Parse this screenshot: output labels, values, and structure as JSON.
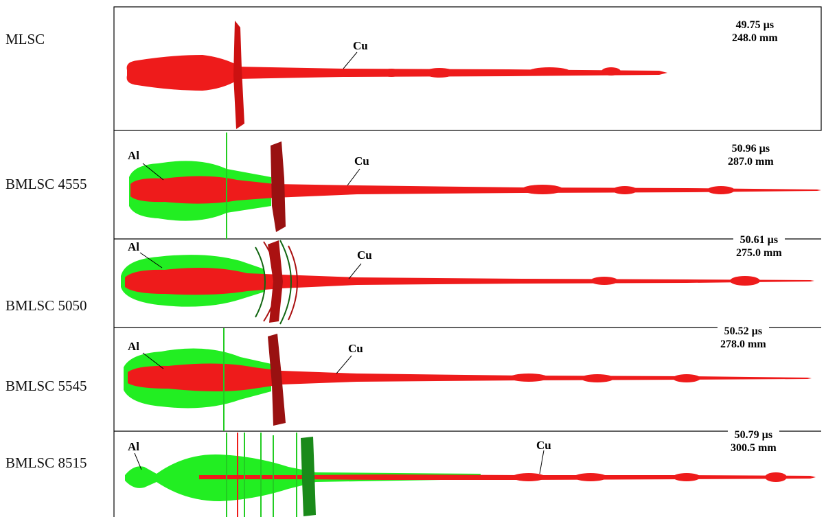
{
  "panels": [
    {
      "id": "p1",
      "config": "MLSC",
      "time": "49.75 µs",
      "length": "248.0 mm",
      "jet_label": "Cu",
      "liner_label": ""
    },
    {
      "id": "p2",
      "config": "BMLSC 4555",
      "time": "50.96 µs",
      "length": "287.0  mm",
      "jet_label": "Cu",
      "liner_label": "Al"
    },
    {
      "id": "p3",
      "config": "BMLSC 5050",
      "time": "50.61 µs",
      "length": "275.0  mm",
      "jet_label": "Cu",
      "liner_label": "Al"
    },
    {
      "id": "p4",
      "config": "BMLSC 5545",
      "time": "50.52 µs",
      "length": "278.0  mm",
      "jet_label": "Cu",
      "liner_label": "Al"
    },
    {
      "id": "p5",
      "config": "BMLSC 8515",
      "time": "50.79  µs",
      "length": "300.5 mm",
      "jet_label": "Cu",
      "liner_label": "Al"
    }
  ],
  "colors": {
    "copper": "#ee1b1b",
    "aluminum": "#22ee22",
    "frame": "#000000"
  }
}
